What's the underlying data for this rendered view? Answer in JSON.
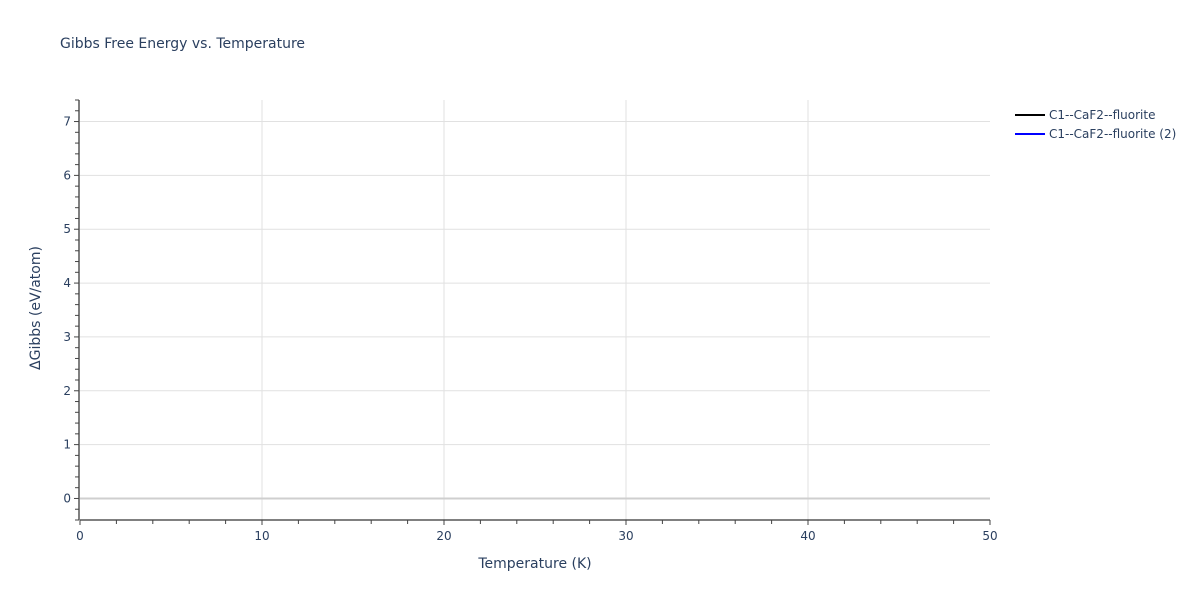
{
  "chart_data": {
    "type": "line",
    "title": "Gibbs Free Energy vs. Temperature",
    "xlabel": "Temperature (K)",
    "ylabel": "ΔGibbs (eV/atom)",
    "xlim": [
      0,
      50
    ],
    "ylim": [
      -0.4,
      7.4
    ],
    "xticks": [
      0,
      10,
      20,
      30,
      40,
      50
    ],
    "yticks": [
      0,
      1,
      2,
      3,
      4,
      5,
      6,
      7
    ],
    "grid": true,
    "legend_position": "top-right",
    "series": [
      {
        "name": "C1--CaF2--fluorite",
        "color": "#000000",
        "x": [],
        "y": []
      },
      {
        "name": "C1--CaF2--fluorite (2)",
        "color": "#0000ff",
        "x": [],
        "y": []
      }
    ]
  }
}
